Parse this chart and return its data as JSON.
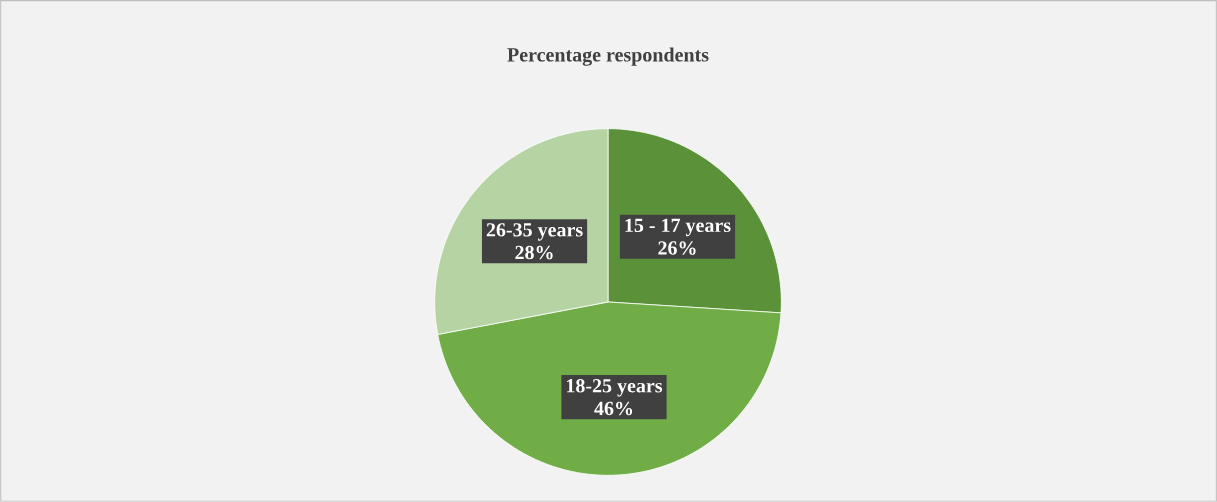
{
  "chart_data": {
    "type": "pie",
    "title": "Percentage respondents",
    "categories": [
      "15 - 17 years",
      "18-25 years",
      "26-35 years"
    ],
    "values": [
      26,
      46,
      28
    ],
    "value_labels": [
      "26%",
      "46%",
      "28%"
    ],
    "colors": [
      "#5b9239",
      "#70ad47",
      "#b6d3a4"
    ]
  }
}
